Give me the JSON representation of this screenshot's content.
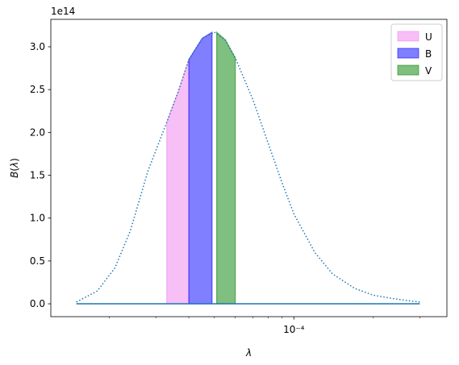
{
  "chart_data": {
    "type": "area",
    "title": "",
    "xlabel": "λ",
    "ylabel": "B(λ)",
    "x_scale": "log",
    "x_unit": "m",
    "y_scale": "linear",
    "y_offset_text": "1e14",
    "y_multiplier": 100000000000000.0,
    "grid": false,
    "legend_position": "top-right",
    "xlim": [
      1.2e-05,
      0.00038
    ],
    "ylim": [
      -0.15,
      3.32
    ],
    "x_ticks": [
      {
        "value": 0.0001,
        "label": "10⁻⁴"
      }
    ],
    "y_ticks": [
      {
        "value": 0.0,
        "label": "0.0"
      },
      {
        "value": 0.5,
        "label": "0.5"
      },
      {
        "value": 1.0,
        "label": "1.0"
      },
      {
        "value": 1.5,
        "label": "1.5"
      },
      {
        "value": 2.0,
        "label": "2.0"
      },
      {
        "value": 2.5,
        "label": "2.5"
      },
      {
        "value": 3.0,
        "label": "3.0"
      }
    ],
    "curve": {
      "style": "dotted",
      "color": "#1f77b4",
      "x": [
        1.5e-05,
        1.8e-05,
        2.1e-05,
        2.4e-05,
        2.8e-05,
        3.3e-05,
        3.65e-05,
        4e-05,
        4.5e-05,
        5e-05,
        5.5e-05,
        6e-05,
        7e-05,
        8e-05,
        9e-05,
        0.0001,
        0.00012,
        0.00014,
        0.00017,
        0.0002,
        0.00025,
        0.0003
      ],
      "y": [
        0.02,
        0.15,
        0.42,
        0.85,
        1.55,
        2.12,
        2.48,
        2.85,
        3.1,
        3.17,
        3.08,
        2.87,
        2.38,
        1.87,
        1.42,
        1.05,
        0.6,
        0.35,
        0.18,
        0.1,
        0.05,
        0.02
      ]
    },
    "baseline": {
      "color": "#1f77b4",
      "y": 0.0,
      "x_range": [
        1.5e-05,
        0.0003
      ]
    },
    "series": [
      {
        "name": "U",
        "color": "#ee82ee",
        "alpha": 0.5,
        "x_range": [
          3.3e-05,
          4e-05
        ],
        "x": [
          3.3e-05,
          3.65e-05,
          4e-05
        ],
        "y": [
          2.12,
          2.48,
          2.85
        ]
      },
      {
        "name": "B",
        "color": "#0000ff",
        "alpha": 0.5,
        "x_range": [
          4e-05,
          4.9e-05
        ],
        "x": [
          4e-05,
          4.5e-05,
          4.9e-05
        ],
        "y": [
          2.85,
          3.1,
          3.17
        ]
      },
      {
        "name": "V",
        "color": "#008000",
        "alpha": 0.5,
        "x_range": [
          5.1e-05,
          6e-05
        ],
        "x": [
          5.1e-05,
          5.5e-05,
          6e-05
        ],
        "y": [
          3.17,
          3.08,
          2.87
        ]
      }
    ]
  }
}
